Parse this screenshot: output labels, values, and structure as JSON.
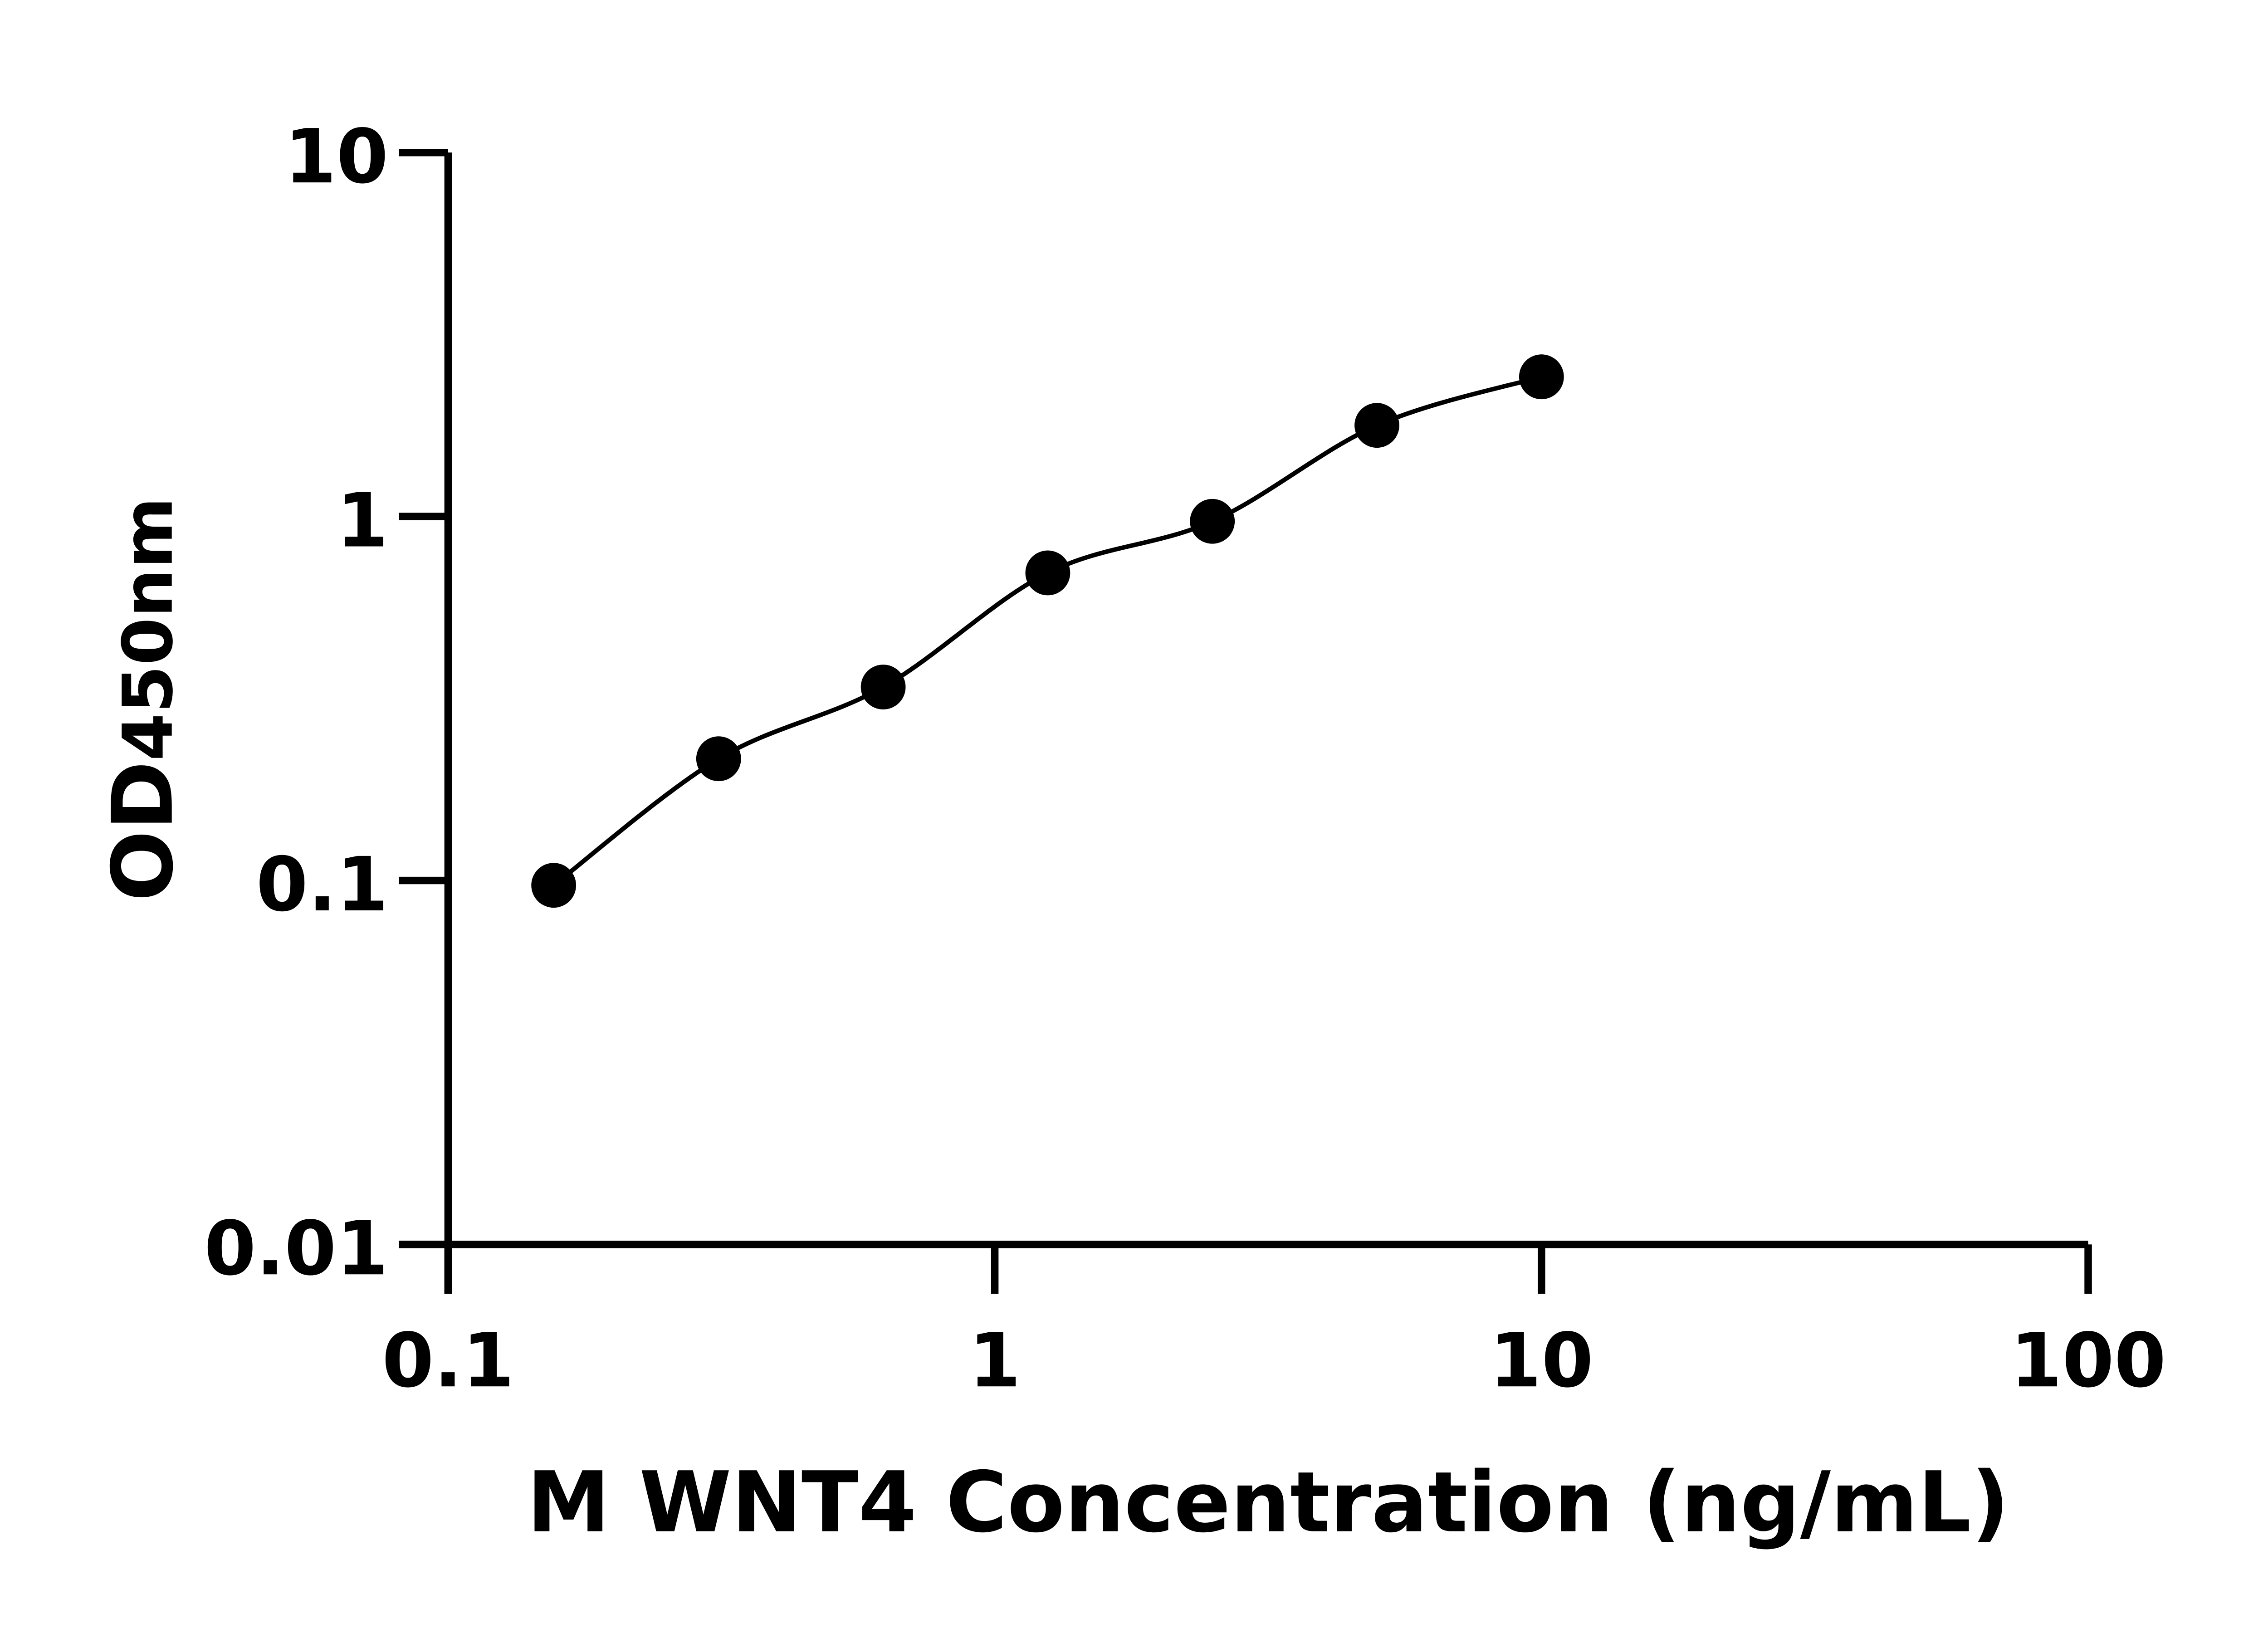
{
  "chart_data": {
    "type": "scatter",
    "title": "",
    "xlabel": "M WNT4 Concentration (ng/mL)",
    "ylabel": "OD450nm",
    "ylabel_parts": {
      "main": "OD",
      "sub": "450nm"
    },
    "x_scale": "log",
    "y_scale": "log",
    "xlim": [
      0.1,
      100
    ],
    "ylim": [
      0.01,
      10
    ],
    "x_ticks": [
      0.1,
      1,
      10,
      100
    ],
    "x_tick_labels": [
      "0.1",
      "1",
      "10",
      "100"
    ],
    "y_ticks": [
      0.01,
      0.1,
      1,
      10
    ],
    "y_tick_labels": [
      "0.01",
      "0.1",
      "1",
      "10"
    ],
    "grid": false,
    "marker_color": "#000000",
    "line_color": "#000000",
    "fit_line": true,
    "x": [
      0.156,
      0.3125,
      0.625,
      1.25,
      2.5,
      5,
      10
    ],
    "y": [
      0.097,
      0.216,
      0.34,
      0.7,
      0.97,
      1.78,
      2.42
    ]
  }
}
